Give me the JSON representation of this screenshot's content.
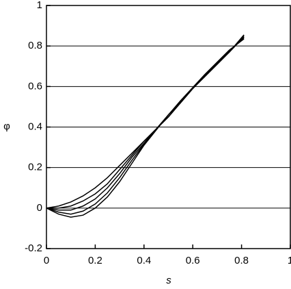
{
  "chart_data": {
    "type": "line",
    "x_label": "s",
    "y_label": "φ",
    "x": [
      0,
      0.05,
      0.1,
      0.15,
      0.2,
      0.25,
      0.3,
      0.35,
      0.4,
      0.45,
      0.5,
      0.55,
      0.6,
      0.65,
      0.7,
      0.75,
      0.81
    ],
    "series": [
      {
        "color": "#000000",
        "values": [
          0,
          0.01,
          0.03,
          0.06,
          0.1,
          0.15,
          0.21,
          0.27,
          0.33,
          0.39,
          0.45,
          0.52,
          0.59,
          0.65,
          0.71,
          0.77,
          0.855
        ]
      },
      {
        "color": "#000000",
        "values": [
          0,
          0,
          0.01,
          0.035,
          0.07,
          0.12,
          0.19,
          0.26,
          0.33,
          0.39,
          0.45,
          0.52,
          0.59,
          0.65,
          0.71,
          0.77,
          0.85
        ]
      },
      {
        "color": "#000000",
        "values": [
          0,
          -0.01,
          -0.01,
          0.01,
          0.045,
          0.1,
          0.17,
          0.25,
          0.32,
          0.39,
          0.46,
          0.52,
          0.59,
          0.655,
          0.715,
          0.77,
          0.845
        ]
      },
      {
        "color": "#000000",
        "values": [
          0,
          -0.02,
          -0.03,
          -0.015,
          0.02,
          0.075,
          0.15,
          0.235,
          0.315,
          0.39,
          0.46,
          0.525,
          0.59,
          0.655,
          0.715,
          0.775,
          0.84
        ]
      },
      {
        "color": "#000000",
        "values": [
          0,
          -0.03,
          -0.045,
          -0.035,
          0,
          0.055,
          0.13,
          0.22,
          0.31,
          0.385,
          0.46,
          0.53,
          0.595,
          0.66,
          0.72,
          0.78,
          0.835
        ]
      }
    ],
    "xlim": [
      0,
      1
    ],
    "xticks": [
      0,
      0.2,
      0.4,
      0.6,
      0.8,
      1
    ],
    "ylim": [
      -0.2,
      1
    ],
    "yticks": [
      -0.2,
      0,
      0.2,
      0.4,
      0.6,
      0.8,
      1
    ],
    "grid": true
  }
}
